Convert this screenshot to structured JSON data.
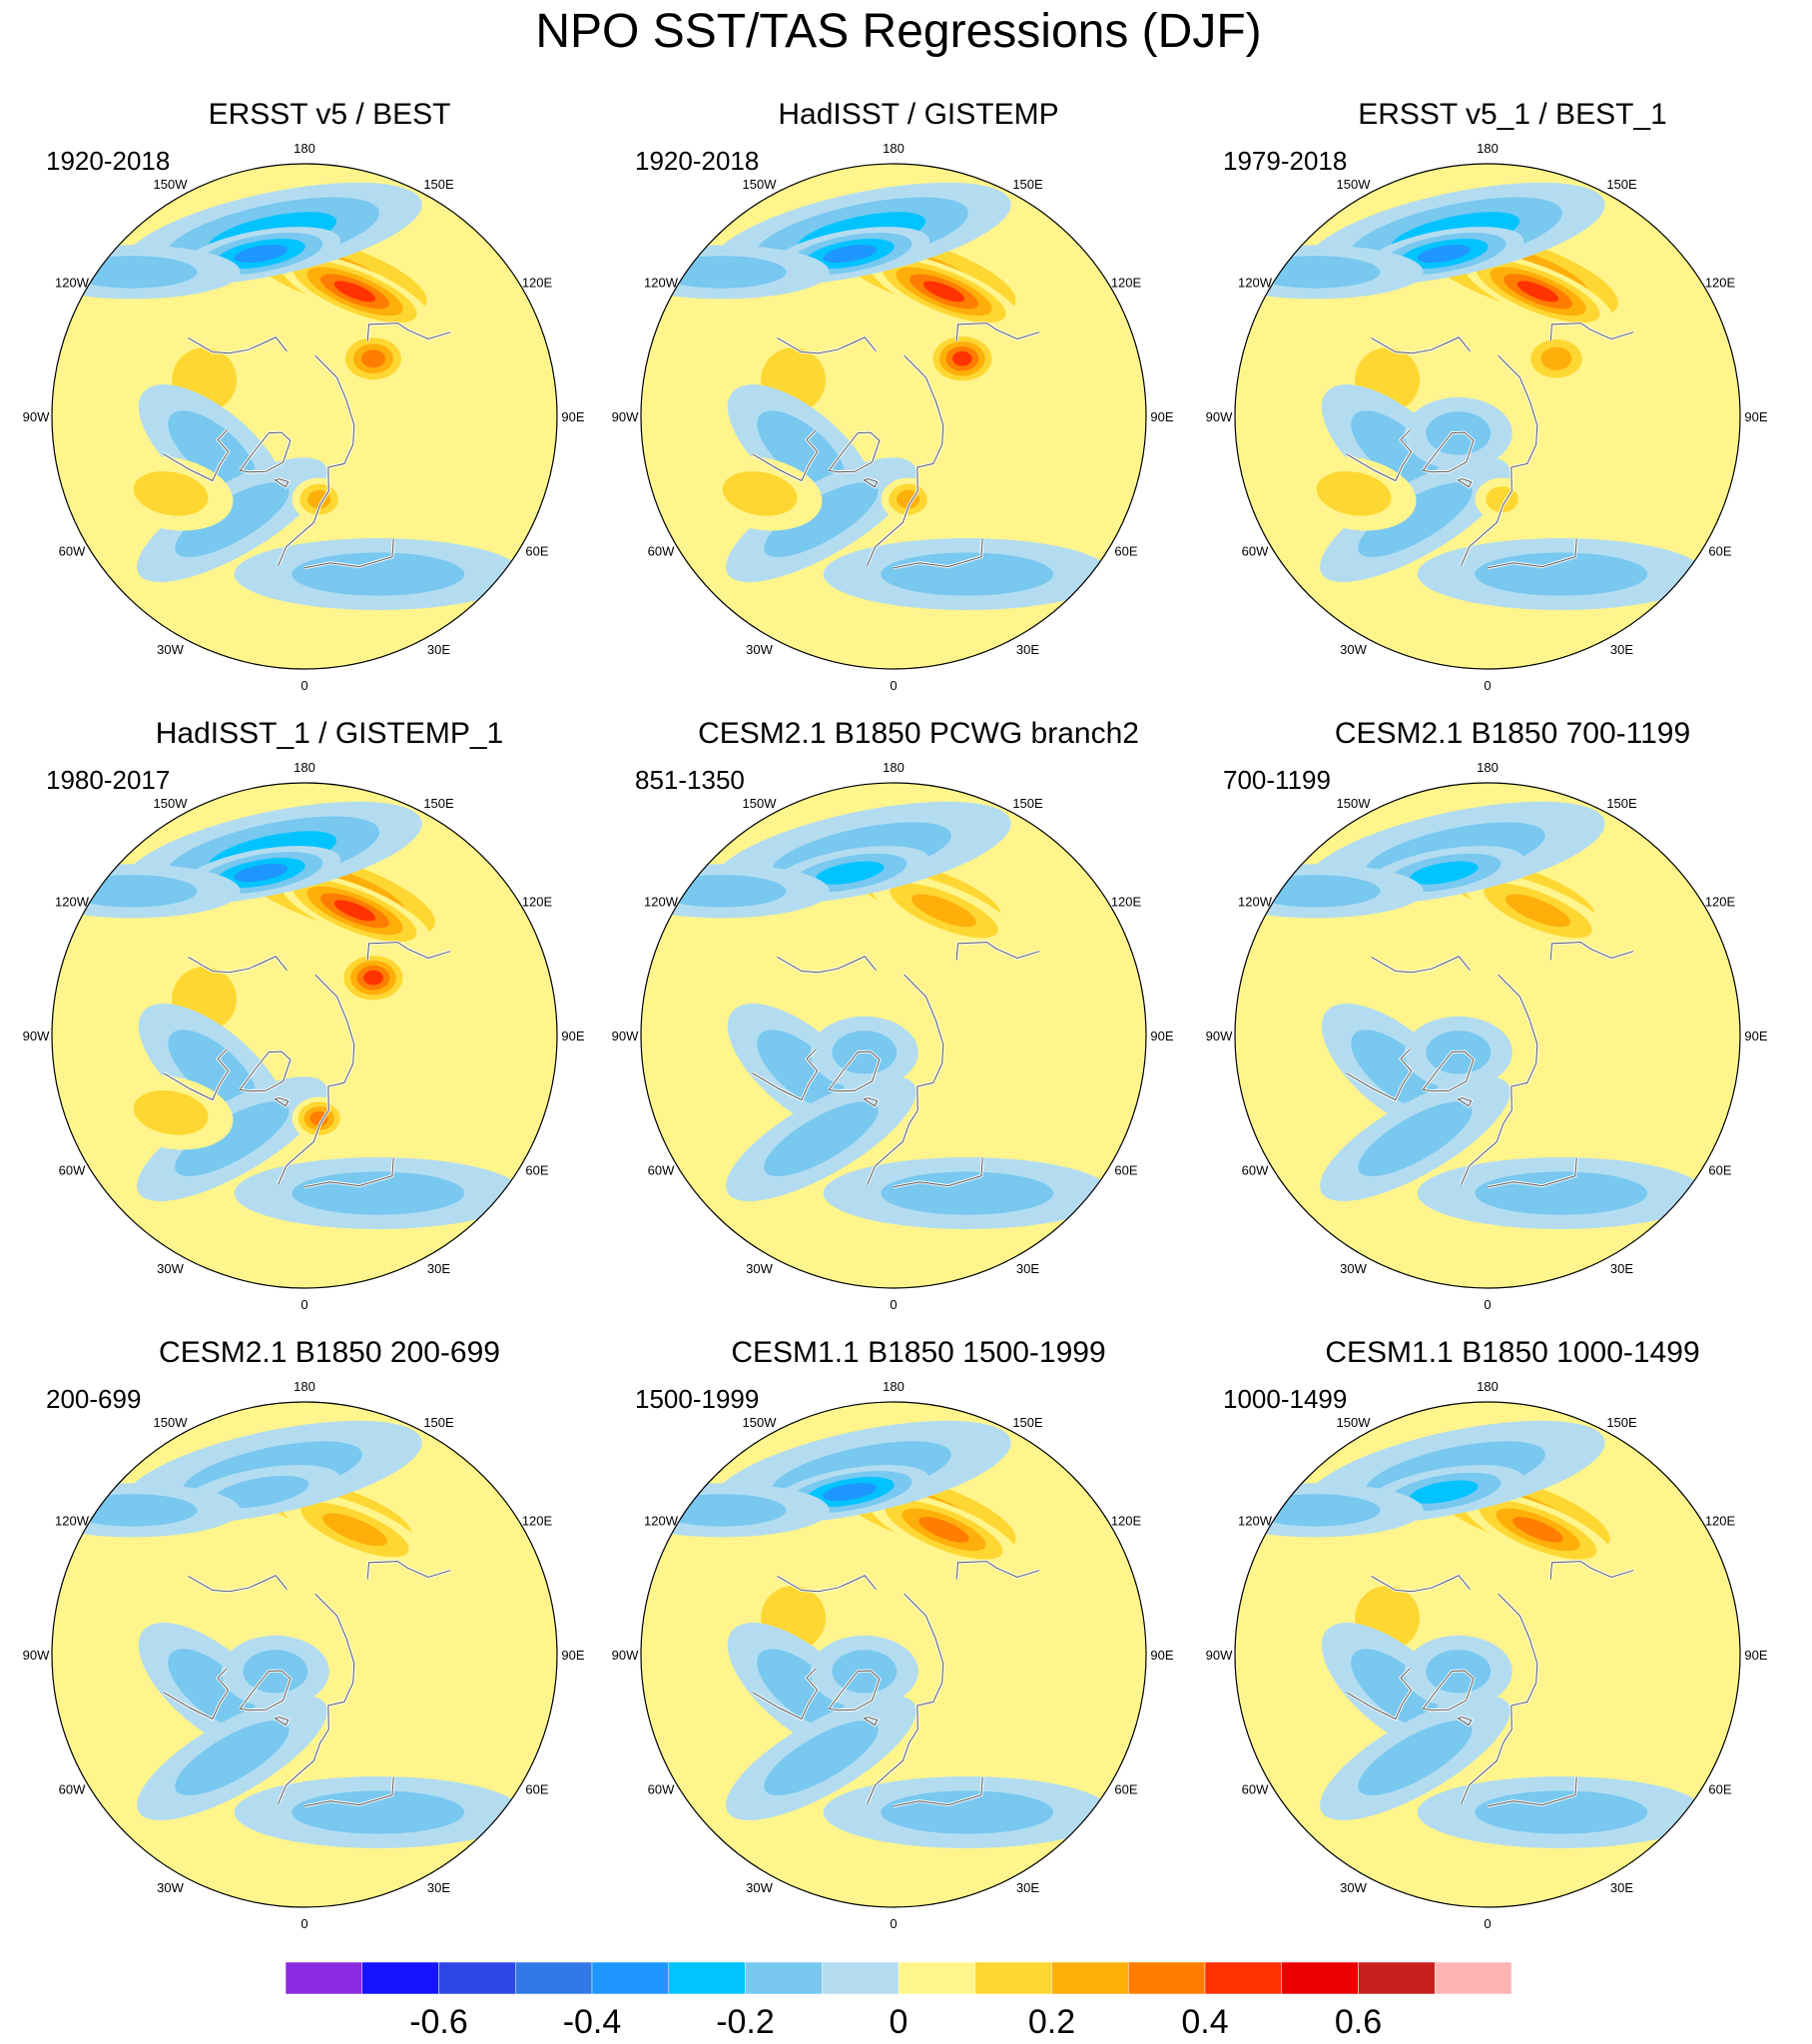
{
  "title": "NPO SST/TAS Regressions (DJF)",
  "lon_labels": {
    "n": "180",
    "nne": "150E",
    "ene": "120E",
    "e": "90E",
    "ese": "60E",
    "sse": "30E",
    "s": "0",
    "ssw": "30W",
    "wsw": "60W",
    "w": "90W",
    "wnw": "120W",
    "nnw": "150W"
  },
  "panels": [
    {
      "title": "ERSST v5 / BEST",
      "period": "1920-2018",
      "strength": 1.0,
      "kara": 0.25,
      "arctic": "mixed"
    },
    {
      "title": "HadISST / GISTEMP",
      "period": "1920-2018",
      "strength": 1.0,
      "kara": 0.3,
      "arctic": "mixed"
    },
    {
      "title": "ERSST v5_1 / BEST_1",
      "period": "1979-2018",
      "strength": 1.1,
      "kara": 0.15,
      "arctic": "cool"
    },
    {
      "title": "HadISST_1 / GISTEMP_1",
      "period": "1980-2017",
      "strength": 1.1,
      "kara": 0.35,
      "arctic": "mixed"
    },
    {
      "title": "CESM2.1 B1850 PCWG branch2",
      "period": "851-1350",
      "strength": 0.6,
      "kara": 0.1,
      "arctic": "cool"
    },
    {
      "title": "CESM2.1 B1850 700-1199",
      "period": "700-1199",
      "strength": 0.6,
      "kara": 0.1,
      "arctic": "cool"
    },
    {
      "title": "CESM2.1 B1850 200-699",
      "period": "200-699",
      "strength": 0.55,
      "kara": 0.05,
      "arctic": "cool"
    },
    {
      "title": "CESM1.1 B1850 1500-1999",
      "period": "1500-1999",
      "strength": 0.9,
      "kara": 0.1,
      "arctic": "cool"
    },
    {
      "title": "CESM1.1 B1850 1000-1499",
      "period": "1000-1499",
      "strength": 0.8,
      "kara": 0.1,
      "arctic": "cool"
    }
  ],
  "colorbar": {
    "colors": [
      "#8A2BE2",
      "#1414FF",
      "#2D46E6",
      "#3278E6",
      "#1E96FF",
      "#00C3FF",
      "#78C8F0",
      "#B4DCF0",
      "#FFF58C",
      "#FFD732",
      "#FFAF0A",
      "#FF7D00",
      "#FF3200",
      "#EB0000",
      "#C81E1E",
      "#FFB4B4"
    ],
    "labels": [
      "-0.6",
      "-0.4",
      "-0.2",
      "0",
      "0.2",
      "0.4",
      "0.6"
    ],
    "label_values": [
      -0.6,
      -0.4,
      -0.2,
      0,
      0.2,
      0.4,
      0.6
    ],
    "levels": [
      -0.7,
      -0.6,
      -0.5,
      -0.4,
      -0.3,
      -0.2,
      -0.1,
      0,
      0.1,
      0.2,
      0.3,
      0.4,
      0.5,
      0.6,
      0.7
    ]
  }
}
